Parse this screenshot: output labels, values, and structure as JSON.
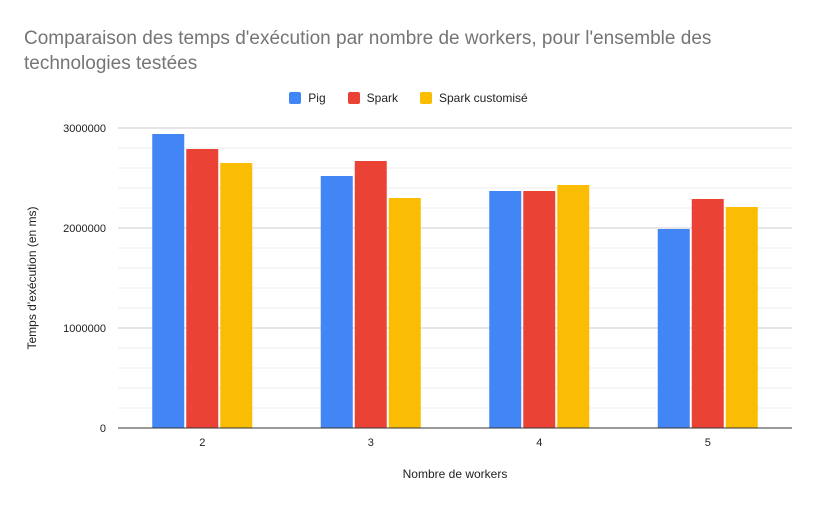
{
  "chart_data": {
    "type": "bar",
    "title": "Comparaison des temps d'exécution par nombre de workers, pour l'ensemble des technologies testées",
    "xlabel": "Nombre de workers",
    "ylabel": "Temps d'exécution (en ms)",
    "categories": [
      "2",
      "3",
      "4",
      "5"
    ],
    "series": [
      {
        "name": "Pig",
        "color": "#4285f4",
        "values": [
          2940000,
          2520000,
          2370000,
          1990000
        ]
      },
      {
        "name": "Spark",
        "color": "#ea4335",
        "values": [
          2790000,
          2670000,
          2370000,
          2290000
        ]
      },
      {
        "name": "Spark customisé",
        "color": "#fbbc04",
        "values": [
          2650000,
          2300000,
          2430000,
          2210000
        ]
      }
    ],
    "ylim": [
      0,
      3000000
    ],
    "yticks": [
      "0",
      "1000000",
      "2000000",
      "3000000"
    ],
    "legend_position": "top-center",
    "grid": true
  }
}
